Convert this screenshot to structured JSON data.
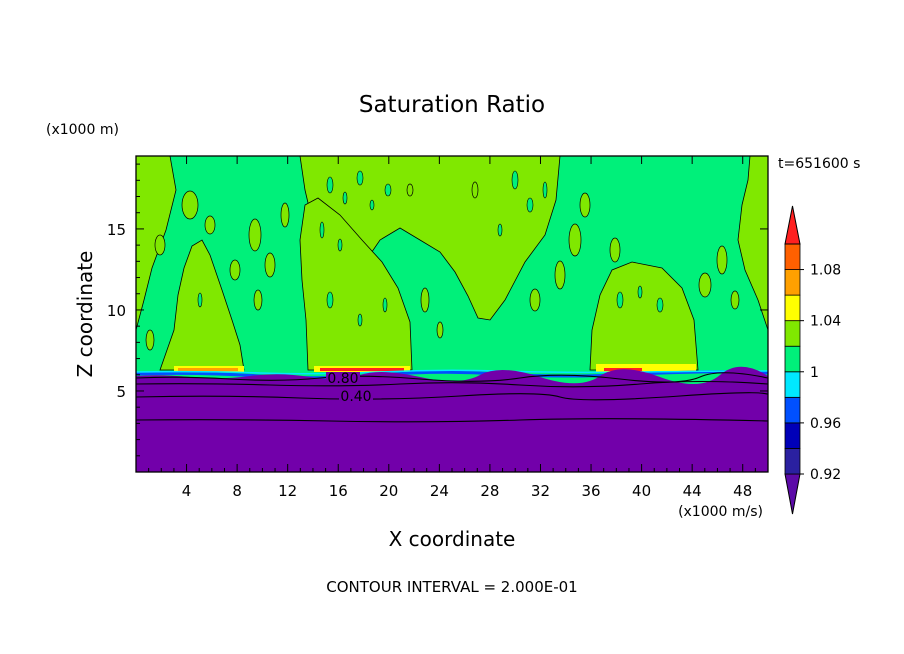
{
  "title": "Saturation Ratio",
  "time_label": "t=651600 s",
  "footer": "CONTOUR INTERVAL = 2.000E-01",
  "chart_data": {
    "type": "heatmap",
    "title": "Saturation Ratio",
    "xlabel": "X coordinate",
    "ylabel": "Z coordinate",
    "x_unit": "(x1000 m/s)",
    "y_unit": "(x1000 m)",
    "x_ticks": [
      "4",
      "8",
      "12",
      "16",
      "20",
      "24",
      "28",
      "32",
      "36",
      "40",
      "44",
      "48"
    ],
    "y_ticks": [
      "5",
      "10",
      "15"
    ],
    "xlim": [
      0,
      50
    ],
    "ylim": [
      0,
      19.5
    ],
    "colorbar": {
      "tick_labels": [
        "0.92",
        "0.96",
        "1",
        "1.04",
        "1.08"
      ],
      "levels": [
        0.92,
        0.94,
        0.96,
        0.98,
        1.0,
        1.02,
        1.04,
        1.06,
        1.08,
        1.1
      ],
      "colors": [
        "#5c0aa8",
        "#2a20a0",
        "#0000b8",
        "#0050ff",
        "#00e8ff",
        "#00f07a",
        "#80e800",
        "#ffff00",
        "#ffa000",
        "#ff6000",
        "#ff2020",
        "#f4a6a6"
      ]
    },
    "contour_labels": [
      {
        "value": "0.80",
        "x": 21.5,
        "z": 5.9
      },
      {
        "value": "0.40",
        "x": 21.5,
        "z": 4.9
      }
    ],
    "surface_layer_top_z": 6.2,
    "fields": {
      "below_6km": "#7200aa",
      "background": "#00f07a",
      "moist_regions": "#80e800"
    },
    "cloud_columns_x": [
      [
        3,
        8.5
      ],
      [
        14,
        21.5
      ],
      [
        36,
        44
      ]
    ]
  }
}
